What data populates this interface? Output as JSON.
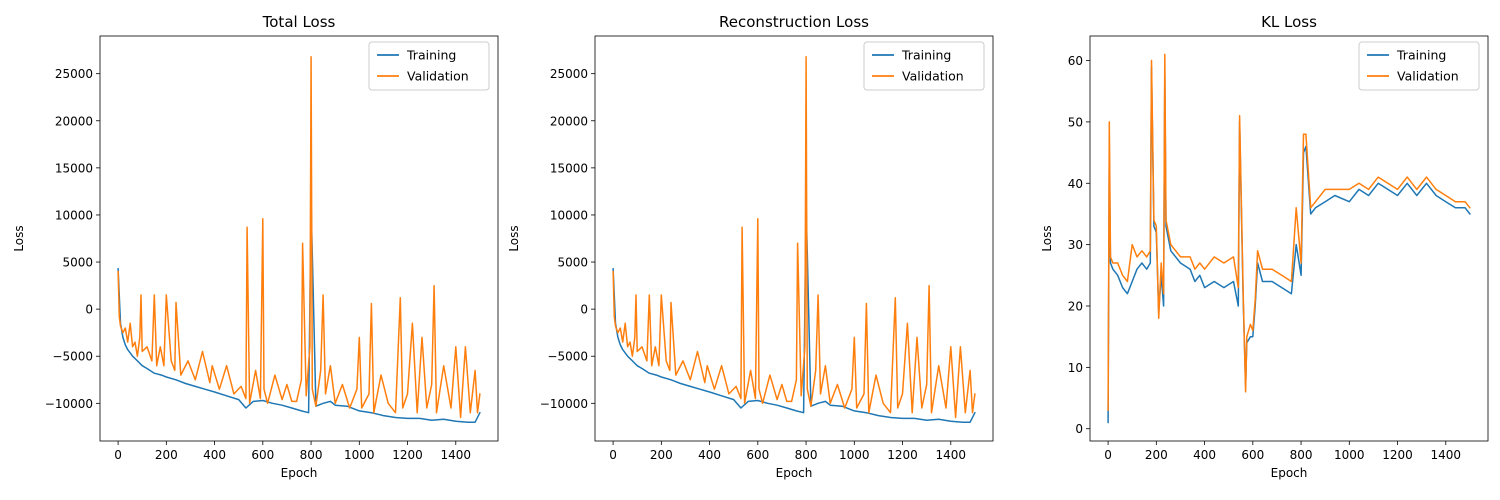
{
  "chart_data": [
    {
      "type": "line",
      "title": "Total Loss",
      "xlabel": "Epoch",
      "ylabel": "Loss",
      "xlim": [
        -75,
        1575
      ],
      "ylim": [
        -14000,
        29000
      ],
      "xticks": [
        0,
        200,
        400,
        600,
        800,
        1000,
        1200,
        1400
      ],
      "yticks": [
        -10000,
        -5000,
        0,
        5000,
        10000,
        15000,
        20000,
        25000
      ],
      "ytick_labels": [
        "−10000",
        "−5000",
        "0",
        "5000",
        "10000",
        "15000",
        "20000",
        "25000"
      ],
      "grid": false,
      "legend": "top-right",
      "series": [
        {
          "name": "Training",
          "color": "#1f77b4",
          "x": [
            0,
            10,
            20,
            30,
            40,
            60,
            80,
            100,
            120,
            150,
            180,
            200,
            240,
            280,
            320,
            360,
            400,
            450,
            500,
            530,
            560,
            600,
            640,
            680,
            720,
            760,
            790,
            800,
            820,
            850,
            880,
            900,
            950,
            1000,
            1050,
            1100,
            1150,
            1200,
            1250,
            1300,
            1350,
            1400,
            1450,
            1480,
            1500
          ],
          "y": [
            4300,
            -1500,
            -3000,
            -3800,
            -4300,
            -5000,
            -5500,
            -6000,
            -6300,
            -6800,
            -7000,
            -7200,
            -7500,
            -7900,
            -8200,
            -8500,
            -8800,
            -9200,
            -9600,
            -10500,
            -9800,
            -9700,
            -10000,
            -10200,
            -10500,
            -10800,
            -11000,
            11300,
            -10300,
            -10000,
            -9800,
            -10200,
            -10300,
            -10800,
            -11000,
            -11300,
            -11500,
            -11600,
            -11600,
            -11800,
            -11700,
            -11900,
            -12000,
            -12000,
            -11000
          ]
        },
        {
          "name": "Validation",
          "color": "#ff7f0e",
          "x": [
            0,
            5,
            10,
            20,
            30,
            40,
            50,
            60,
            70,
            80,
            90,
            95,
            100,
            120,
            140,
            150,
            160,
            175,
            190,
            200,
            220,
            235,
            240,
            260,
            290,
            320,
            350,
            380,
            390,
            420,
            450,
            480,
            510,
            530,
            535,
            545,
            570,
            590,
            600,
            605,
            620,
            650,
            680,
            700,
            720,
            740,
            760,
            765,
            780,
            795,
            800,
            805,
            820,
            840,
            850,
            860,
            880,
            900,
            930,
            960,
            990,
            1000,
            1010,
            1040,
            1050,
            1060,
            1090,
            1120,
            1150,
            1170,
            1180,
            1200,
            1220,
            1240,
            1260,
            1280,
            1300,
            1310,
            1320,
            1350,
            1380,
            1400,
            1420,
            1440,
            1460,
            1480,
            1490,
            1500
          ],
          "y": [
            4000,
            -800,
            -1800,
            -2500,
            -2000,
            -3500,
            -1500,
            -4000,
            -3500,
            -5000,
            -3000,
            1500,
            -4500,
            -4000,
            -5500,
            1500,
            -6000,
            -4000,
            -6000,
            1500,
            -5500,
            -6500,
            700,
            -7000,
            -5500,
            -7500,
            -4500,
            -7800,
            -6000,
            -8500,
            -6000,
            -9000,
            -8200,
            -9500,
            8700,
            -10000,
            -6500,
            -9500,
            9600,
            -8500,
            -10000,
            -7000,
            -9600,
            -8000,
            -9800,
            -9800,
            -7500,
            7000,
            -9200,
            -4000,
            26800,
            -8500,
            -10300,
            -6500,
            1500,
            -9000,
            -6000,
            -10000,
            -8000,
            -10500,
            -8500,
            -3000,
            -10500,
            -9000,
            600,
            -11000,
            -7000,
            -10000,
            -11000,
            1200,
            -10500,
            -9000,
            -1500,
            -11000,
            -3000,
            -10500,
            -8000,
            2500,
            -11000,
            -6000,
            -10500,
            -4000,
            -11500,
            -4000,
            -11000,
            -6500,
            -11000,
            -9000
          ]
        }
      ]
    },
    {
      "type": "line",
      "title": "Reconstruction Loss",
      "xlabel": "Epoch",
      "ylabel": "Loss",
      "xlim": [
        -75,
        1575
      ],
      "ylim": [
        -14000,
        29000
      ],
      "xticks": [
        0,
        200,
        400,
        600,
        800,
        1000,
        1200,
        1400
      ],
      "yticks": [
        -10000,
        -5000,
        0,
        5000,
        10000,
        15000,
        20000,
        25000
      ],
      "ytick_labels": [
        "−10000",
        "−5000",
        "0",
        "5000",
        "10000",
        "15000",
        "20000",
        "25000"
      ],
      "grid": false,
      "legend": "top-right",
      "series": [
        {
          "name": "Training",
          "color": "#1f77b4",
          "x": [
            0,
            10,
            20,
            30,
            40,
            60,
            80,
            100,
            120,
            150,
            180,
            200,
            240,
            280,
            320,
            360,
            400,
            450,
            500,
            530,
            560,
            600,
            640,
            680,
            720,
            760,
            790,
            800,
            820,
            850,
            880,
            900,
            950,
            1000,
            1050,
            1100,
            1150,
            1200,
            1250,
            1300,
            1350,
            1400,
            1450,
            1480,
            1500
          ],
          "y": [
            4300,
            -1500,
            -3000,
            -3800,
            -4300,
            -5000,
            -5500,
            -6000,
            -6300,
            -6800,
            -7000,
            -7200,
            -7500,
            -7900,
            -8200,
            -8500,
            -8800,
            -9200,
            -9600,
            -10500,
            -9800,
            -9700,
            -10000,
            -10200,
            -10500,
            -10800,
            -11000,
            11300,
            -10300,
            -10000,
            -9800,
            -10200,
            -10300,
            -10800,
            -11000,
            -11300,
            -11500,
            -11600,
            -11600,
            -11800,
            -11700,
            -11900,
            -12000,
            -12000,
            -11000
          ]
        },
        {
          "name": "Validation",
          "color": "#ff7f0e",
          "x": [
            0,
            5,
            10,
            20,
            30,
            40,
            50,
            60,
            70,
            80,
            90,
            95,
            100,
            120,
            140,
            150,
            160,
            175,
            190,
            200,
            220,
            235,
            240,
            260,
            290,
            320,
            350,
            380,
            390,
            420,
            450,
            480,
            510,
            530,
            535,
            545,
            570,
            590,
            600,
            605,
            620,
            650,
            680,
            700,
            720,
            740,
            760,
            765,
            780,
            795,
            800,
            805,
            820,
            840,
            850,
            860,
            880,
            900,
            930,
            960,
            990,
            1000,
            1010,
            1040,
            1050,
            1060,
            1090,
            1120,
            1150,
            1170,
            1180,
            1200,
            1220,
            1240,
            1260,
            1280,
            1300,
            1310,
            1320,
            1350,
            1380,
            1400,
            1420,
            1440,
            1460,
            1480,
            1490,
            1500
          ],
          "y": [
            4000,
            -800,
            -1800,
            -2500,
            -2000,
            -3500,
            -1500,
            -4000,
            -3500,
            -5000,
            -3000,
            1500,
            -4500,
            -4000,
            -5500,
            1500,
            -6000,
            -4000,
            -6000,
            1500,
            -5500,
            -6500,
            700,
            -7000,
            -5500,
            -7500,
            -4500,
            -7800,
            -6000,
            -8500,
            -6000,
            -9000,
            -8200,
            -9500,
            8700,
            -10000,
            -6500,
            -9500,
            9600,
            -8500,
            -10000,
            -7000,
            -9600,
            -8000,
            -9800,
            -9800,
            -7500,
            7000,
            -9200,
            -4000,
            26800,
            -8500,
            -10300,
            -6500,
            1500,
            -9000,
            -6000,
            -10000,
            -8000,
            -10500,
            -8500,
            -3000,
            -10500,
            -9000,
            600,
            -11000,
            -7000,
            -10000,
            -11000,
            1200,
            -10500,
            -9000,
            -1500,
            -11000,
            -3000,
            -10500,
            -8000,
            2500,
            -11000,
            -6000,
            -10500,
            -4000,
            -11500,
            -4000,
            -11000,
            -6500,
            -11000,
            -9000
          ]
        }
      ]
    },
    {
      "type": "line",
      "title": "KL Loss",
      "xlabel": "Epoch",
      "ylabel": "Loss",
      "xlim": [
        -75,
        1575
      ],
      "ylim": [
        -2,
        64
      ],
      "xticks": [
        0,
        200,
        400,
        600,
        800,
        1000,
        1200,
        1400
      ],
      "yticks": [
        0,
        10,
        20,
        30,
        40,
        50,
        60
      ],
      "ytick_labels": [
        "0",
        "10",
        "20",
        "30",
        "40",
        "50",
        "60"
      ],
      "grid": false,
      "legend": "top-right",
      "series": [
        {
          "name": "Training",
          "color": "#1f77b4",
          "x": [
            0,
            5,
            10,
            20,
            40,
            60,
            80,
            100,
            120,
            140,
            160,
            175,
            180,
            190,
            200,
            210,
            220,
            230,
            235,
            240,
            260,
            300,
            340,
            360,
            380,
            400,
            440,
            480,
            520,
            540,
            545,
            560,
            570,
            575,
            590,
            600,
            610,
            620,
            640,
            680,
            720,
            760,
            780,
            800,
            810,
            820,
            840,
            860,
            900,
            940,
            1000,
            1040,
            1080,
            1120,
            1160,
            1200,
            1240,
            1280,
            1320,
            1360,
            1400,
            1440,
            1480,
            1500
          ],
          "y": [
            1,
            45,
            27,
            26,
            25,
            23,
            22,
            24,
            26,
            27,
            26,
            27,
            59,
            33,
            32,
            19,
            25,
            20,
            58,
            33,
            29,
            27,
            26,
            24,
            25,
            23,
            24,
            23,
            24,
            20,
            50,
            21,
            7,
            14,
            15,
            15,
            20,
            27,
            24,
            24,
            23,
            22,
            30,
            25,
            45,
            46,
            35,
            36,
            37,
            38,
            37,
            39,
            38,
            40,
            39,
            38,
            40,
            38,
            40,
            38,
            37,
            36,
            36,
            35
          ]
        },
        {
          "name": "Validation",
          "color": "#ff7f0e",
          "x": [
            0,
            5,
            10,
            20,
            40,
            60,
            80,
            100,
            120,
            140,
            160,
            175,
            180,
            190,
            200,
            210,
            220,
            230,
            235,
            240,
            260,
            300,
            340,
            360,
            380,
            400,
            440,
            480,
            520,
            540,
            545,
            560,
            570,
            575,
            590,
            600,
            610,
            620,
            640,
            680,
            720,
            760,
            780,
            800,
            810,
            820,
            840,
            860,
            900,
            940,
            1000,
            1040,
            1080,
            1120,
            1160,
            1200,
            1240,
            1280,
            1320,
            1360,
            1400,
            1440,
            1480,
            1500
          ],
          "y": [
            3,
            50,
            28,
            27,
            27,
            25,
            24,
            30,
            28,
            29,
            28,
            29,
            60,
            34,
            33,
            18,
            27,
            22,
            61,
            34,
            30,
            28,
            28,
            26,
            27,
            26,
            28,
            27,
            28,
            23,
            51,
            22,
            6,
            15,
            17,
            16,
            21,
            29,
            26,
            26,
            25,
            24,
            36,
            27,
            48,
            48,
            36,
            37,
            39,
            39,
            39,
            40,
            39,
            41,
            40,
            39,
            41,
            39,
            41,
            39,
            38,
            37,
            37,
            36
          ]
        }
      ]
    }
  ]
}
